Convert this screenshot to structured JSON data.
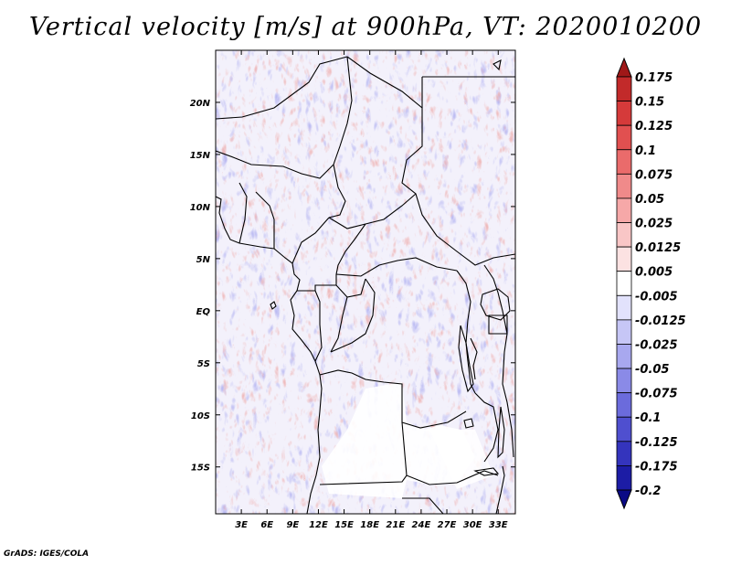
{
  "title": "Vertical velocity [m/s] at 900hPa, VT: 2020010200",
  "credit": "GrADS: IGES/COLA",
  "map": {
    "lon_labels": [
      "3E",
      "6E",
      "9E",
      "12E",
      "15E",
      "18E",
      "21E",
      "24E",
      "27E",
      "30E",
      "33E"
    ],
    "lon_values": [
      3,
      6,
      9,
      12,
      15,
      18,
      21,
      24,
      27,
      30,
      33
    ],
    "lon_range": [
      0,
      35
    ],
    "lat_labels": [
      "20N",
      "15N",
      "10N",
      "5N",
      "EQ",
      "5S",
      "10S",
      "15S"
    ],
    "lat_values": [
      20,
      15,
      10,
      5,
      0,
      -5,
      -10,
      -15
    ],
    "lat_range": [
      -19.5,
      25
    ]
  },
  "colorbar": {
    "levels": [
      "0.175",
      "0.15",
      "0.125",
      "0.1",
      "0.075",
      "0.05",
      "0.025",
      "0.0125",
      "0.005",
      "-0.005",
      "-0.0125",
      "-0.025",
      "-0.05",
      "-0.075",
      "-0.1",
      "-0.125",
      "-0.175",
      "-0.2"
    ],
    "colors": [
      "#a01818",
      "#c22a2a",
      "#d53a3a",
      "#e15050",
      "#ea6b6b",
      "#f08a8a",
      "#f6a8a8",
      "#f9c6c6",
      "#fce2e2",
      "#ffffff",
      "#e2e2fc",
      "#c6c6f6",
      "#a8a8ef",
      "#8a8ae7",
      "#6b6bdc",
      "#4f4fcf",
      "#3434bd",
      "#1c1ca5",
      "#0a0a85"
    ]
  }
}
